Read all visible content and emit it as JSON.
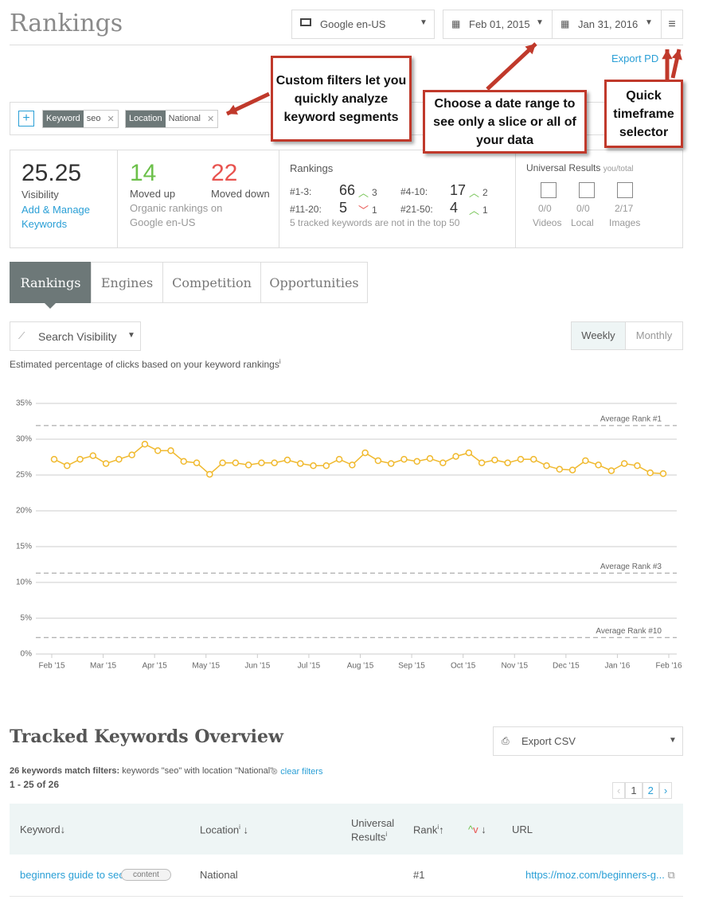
{
  "header": {
    "title": "Rankings",
    "engine": "Google en-US",
    "start_date": "Feb 01, 2015",
    "end_date": "Jan 31, 2016",
    "export": "Export PD"
  },
  "callouts": [
    "Custom filters let you quickly analyze keyword segments",
    "Choose a date range to see only a slice or all of your data",
    "Quick timeframe selector"
  ],
  "filters": [
    {
      "label": "Keyword",
      "value": "seo"
    },
    {
      "label": "Location",
      "value": "National"
    }
  ],
  "summary": {
    "visibility": {
      "value": "25.25",
      "label": "Visibility",
      "link": "Add & Manage Keywords"
    },
    "moved_up": {
      "value": "14",
      "label": "Moved up"
    },
    "moved_down": {
      "value": "22",
      "label": "Moved down"
    },
    "moved_note": "Organic rankings on Google en-US",
    "rankings": {
      "title": "Rankings",
      "rows": [
        {
          "range": "#1-3:",
          "count": "66",
          "change": "3",
          "dir": "up"
        },
        {
          "range": "#4-10:",
          "count": "17",
          "change": "2",
          "dir": "up"
        },
        {
          "range": "#11-20:",
          "count": "5",
          "change": "1",
          "dir": "down"
        },
        {
          "range": "#21-50:",
          "count": "4",
          "change": "1",
          "dir": "up"
        }
      ],
      "note": "5 tracked keywords are not in the top 50"
    },
    "universal": {
      "title": "Universal Results",
      "subtitle": "you/total",
      "items": [
        {
          "value": "0/0",
          "label": "Videos"
        },
        {
          "value": "0/0",
          "label": "Local"
        },
        {
          "value": "2/17",
          "label": "Images"
        }
      ]
    }
  },
  "tabs": [
    "Rankings",
    "Engines",
    "Competition",
    "Opportunities"
  ],
  "metric_select": "Search Visibility",
  "periods": [
    "Weekly",
    "Monthly"
  ],
  "chart_caption": "Estimated percentage of clicks based on your keyword rankings",
  "chart_data": {
    "type": "line",
    "color": "#f0b92e",
    "categories": [
      null,
      null,
      null,
      null,
      null,
      null,
      null,
      null,
      null,
      null,
      null,
      null,
      null,
      null,
      null,
      null,
      null,
      null,
      null,
      null,
      null,
      null,
      null,
      null,
      null,
      null,
      null,
      null,
      null,
      null,
      null,
      null,
      null,
      null,
      null,
      null,
      null,
      null,
      null,
      null,
      null,
      null,
      null,
      null,
      null,
      null,
      null,
      null
    ],
    "values": [
      27.2,
      26.3,
      27.2,
      27.7,
      26.6,
      27.2,
      27.8,
      29.3,
      28.4,
      28.4,
      26.9,
      26.7,
      25.1,
      26.7,
      26.7,
      26.4,
      26.7,
      26.7,
      27.1,
      26.6,
      26.3,
      26.3,
      27.2,
      26.4,
      28.1,
      27.0,
      26.6,
      27.2,
      26.9,
      27.3,
      26.7,
      27.6,
      28.1,
      26.7,
      27.1,
      26.7,
      27.2,
      27.2,
      26.3,
      25.8,
      25.7,
      27.0,
      26.4,
      25.6,
      26.6,
      26.3,
      25.3,
      25.2
    ],
    "xtick_labels": [
      "Feb '15",
      "Mar '15",
      "Apr '15",
      "May '15",
      "Jun '15",
      "Jul '15",
      "Aug '15",
      "Sep '15",
      "Oct '15",
      "Nov '15",
      "Dec '15",
      "Jan '16",
      "Feb '16"
    ],
    "ylim": [
      0,
      35
    ],
    "yticks": [
      {
        "value": 0,
        "label": "0%"
      },
      {
        "value": 5,
        "label": "5%"
      },
      {
        "value": 10,
        "label": "10%"
      },
      {
        "value": 15,
        "label": "15%"
      },
      {
        "value": 20,
        "label": "20%"
      },
      {
        "value": 25,
        "label": "25%"
      },
      {
        "value": 30,
        "label": "30%"
      },
      {
        "value": 35,
        "label": "35%"
      }
    ],
    "grid": true,
    "reference_lines": [
      {
        "label": "Average Rank #1",
        "value": 31.9
      },
      {
        "label": "Average Rank #3",
        "value": 11.3
      },
      {
        "label": "Average Rank #10",
        "value": 2.3
      }
    ]
  },
  "keywords": {
    "title": "Tracked Keywords Overview",
    "export": "Export CSV",
    "match_note": "26 keywords match filters:",
    "match_detail": "keywords \"seo\" with location \"National\"",
    "clear": "clear filters",
    "range": "1 - 25 of 26",
    "pages": [
      "1",
      "2"
    ],
    "columns": [
      "Keyword",
      "Location",
      "Universal Results",
      "Rank",
      "URL"
    ],
    "rows": [
      {
        "keyword": "beginners guide to seo",
        "tag": "content",
        "location": "National",
        "rank": "#1",
        "url": "https://moz.com/beginners-g..."
      }
    ]
  }
}
